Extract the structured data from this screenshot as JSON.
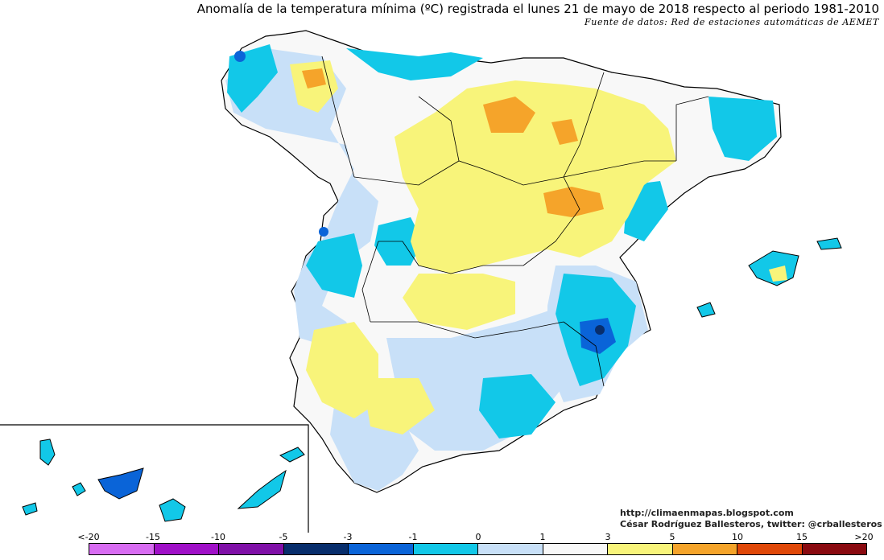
{
  "title": "Anomalía de la temperatura mínima (ºC) registrada el lunes 21 de mayo de 2018 respecto al periodo 1981-2010",
  "subtitle": "Fuente de datos: Red de estaciones automáticas de AEMET",
  "credits": {
    "url": "http://climaenmapas.blogspot.com",
    "author": "César Rodríguez Ballesteros, twitter: @crballesteros"
  },
  "legend": {
    "labels": [
      "<-20",
      "-15",
      "-10",
      "-5",
      "-3",
      "-1",
      "0",
      "1",
      "3",
      "5",
      "10",
      "15",
      ">20"
    ],
    "colors": [
      "#d86cf2",
      "#a010c8",
      "#8010a8",
      "#082e6c",
      "#0a64d8",
      "#12c8e8",
      "#c8e0f8",
      "#f8f8f8",
      "#f8f47a",
      "#f5a42a",
      "#e04808",
      "#8a0a10",
      "#6a3a06"
    ]
  }
}
